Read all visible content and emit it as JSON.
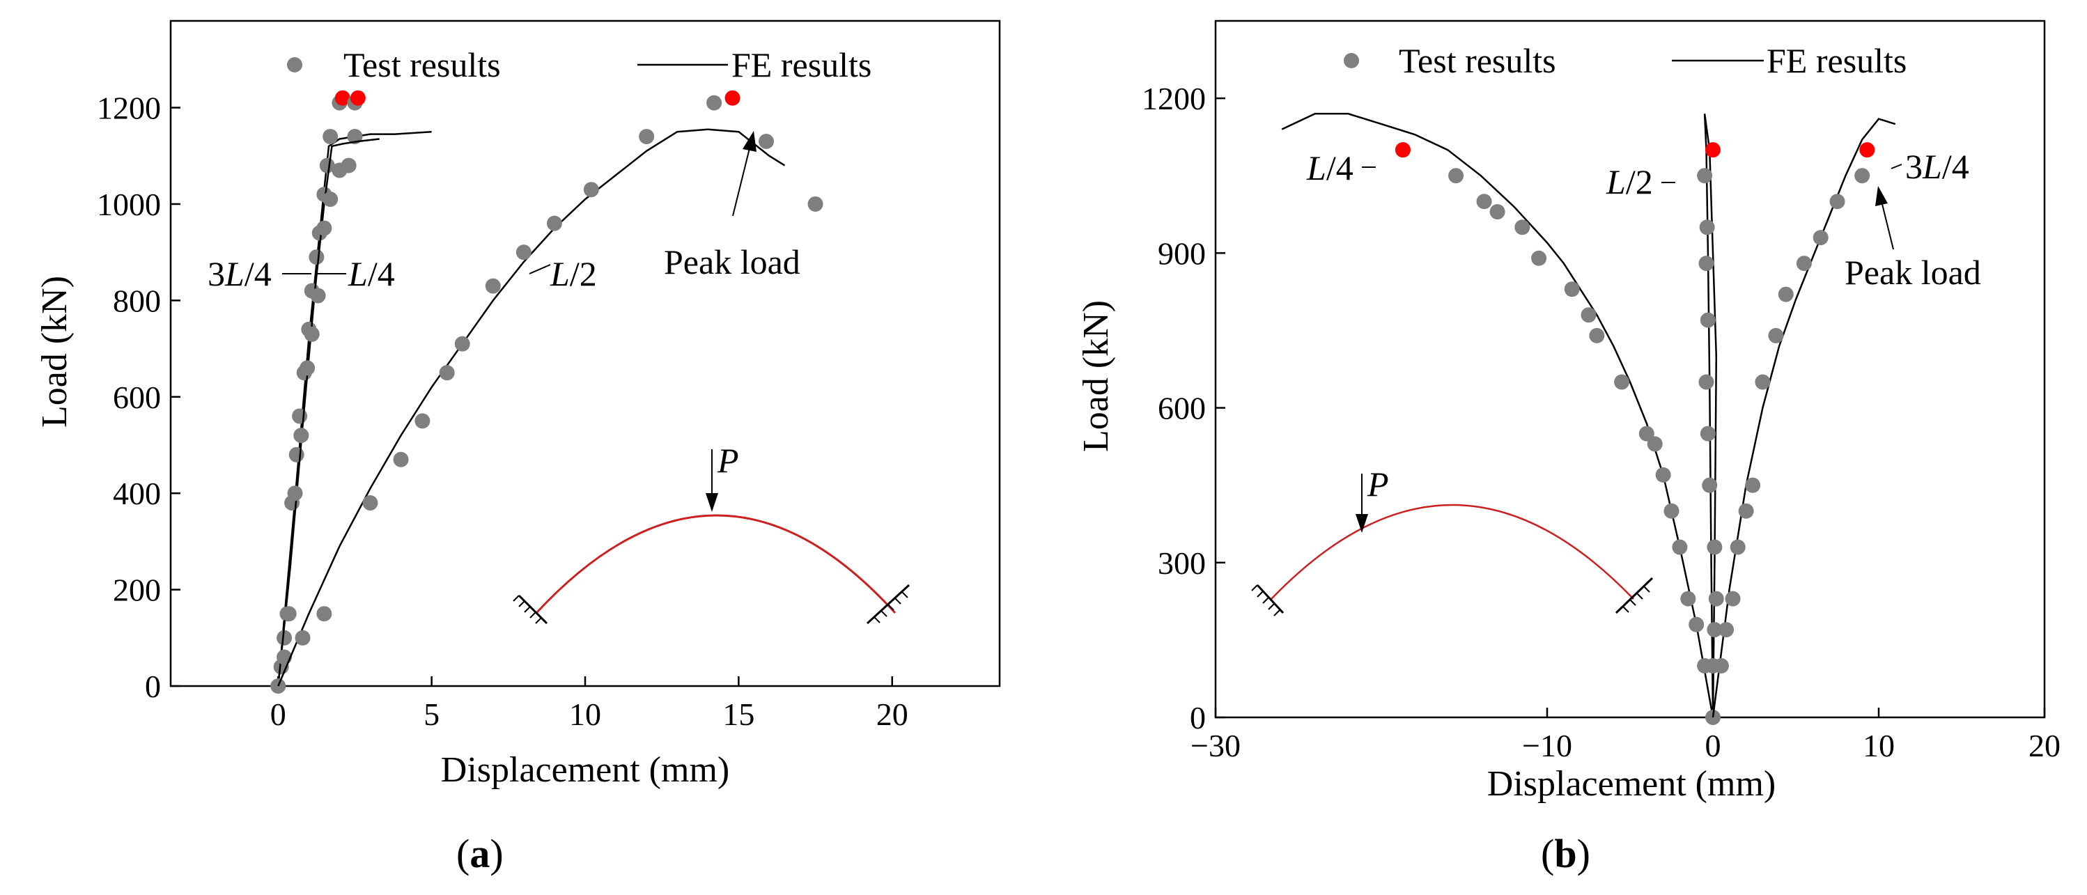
{
  "chart_data": [
    {
      "type": "line",
      "panel_label": "a",
      "xlabel": "Displacement (mm)",
      "ylabel": "Load (kN)",
      "xlim": [
        -3.5,
        23.5
      ],
      "ylim": [
        0,
        1380
      ],
      "xticks": [
        0,
        5,
        10,
        15,
        20
      ],
      "yticks": [
        0,
        200,
        400,
        600,
        800,
        1000,
        1200
      ],
      "legend": {
        "test": "Test results",
        "fe": "FE results",
        "placement": "top"
      },
      "peak_label": "Peak load",
      "load_label": "P",
      "curves": [
        {
          "label": "3L/4",
          "fe": [
            [
              0,
              0
            ],
            [
              0.5,
              350
            ],
            [
              1,
              720
            ],
            [
              1.45,
              1000
            ],
            [
              1.65,
              1120
            ],
            [
              2,
              1135
            ],
            [
              2.5,
              1140
            ],
            [
              3,
              1145
            ],
            [
              3.8,
              1145
            ],
            [
              4.5,
              1148
            ],
            [
              5,
              1150
            ]
          ],
          "test": [
            [
              0.1,
              40
            ],
            [
              0.2,
              100
            ],
            [
              0.3,
              150
            ],
            [
              0.45,
              380
            ],
            [
              0.6,
              480
            ],
            [
              0.7,
              560
            ],
            [
              0.85,
              650
            ],
            [
              1,
              740
            ],
            [
              1.1,
              820
            ],
            [
              1.25,
              890
            ],
            [
              1.35,
              940
            ],
            [
              1.5,
              1020
            ],
            [
              1.6,
              1080
            ],
            [
              1.7,
              1140
            ],
            [
              2,
              1210
            ],
            [
              2.5,
              1140
            ]
          ],
          "peak": [
            2.1,
            1220
          ]
        },
        {
          "label": "L/4",
          "fe": [
            [
              0,
              0
            ],
            [
              0.4,
              250
            ],
            [
              0.8,
              540
            ],
            [
              1.2,
              820
            ],
            [
              1.5,
              1000
            ],
            [
              1.75,
              1120
            ],
            [
              2.1,
              1125
            ],
            [
              2.6,
              1130
            ],
            [
              3.3,
              1135
            ]
          ],
          "test": [
            [
              0,
              0
            ],
            [
              0.2,
              60
            ],
            [
              0.35,
              150
            ],
            [
              0.55,
              400
            ],
            [
              0.75,
              520
            ],
            [
              0.95,
              660
            ],
            [
              1.1,
              730
            ],
            [
              1.3,
              810
            ],
            [
              1.5,
              950
            ],
            [
              1.7,
              1010
            ],
            [
              2,
              1070
            ],
            [
              2.3,
              1080
            ],
            [
              2.5,
              1210
            ]
          ],
          "peak": [
            2.6,
            1220
          ]
        },
        {
          "label": "L/2",
          "fe": [
            [
              0,
              0
            ],
            [
              1,
              150
            ],
            [
              2,
              290
            ],
            [
              3,
              410
            ],
            [
              4,
              520
            ],
            [
              5,
              620
            ],
            [
              6,
              710
            ],
            [
              7,
              800
            ],
            [
              8,
              880
            ],
            [
              9,
              950
            ],
            [
              10,
              1010
            ],
            [
              11,
              1060
            ],
            [
              12,
              1110
            ],
            [
              13,
              1150
            ],
            [
              14,
              1155
            ],
            [
              15,
              1150
            ],
            [
              16,
              1100
            ],
            [
              16.5,
              1080
            ]
          ],
          "test": [
            [
              0.8,
              100
            ],
            [
              1.5,
              150
            ],
            [
              3,
              380
            ],
            [
              4,
              470
            ],
            [
              4.7,
              550
            ],
            [
              5.5,
              650
            ],
            [
              6,
              710
            ],
            [
              7,
              830
            ],
            [
              8,
              900
            ],
            [
              9,
              960
            ],
            [
              10.2,
              1030
            ],
            [
              12,
              1140
            ],
            [
              14.2,
              1210
            ],
            [
              15.9,
              1130
            ],
            [
              17.5,
              1000
            ]
          ],
          "peak": [
            14.8,
            1220
          ]
        }
      ]
    },
    {
      "type": "line",
      "panel_label": "b",
      "xlabel": "Displacement (mm)",
      "ylabel": "Load (kN)",
      "xlim": [
        -30,
        20
      ],
      "ylim": [
        0,
        1350
      ],
      "xticks": [
        -30,
        -10,
        0,
        10,
        20
      ],
      "xtick_labels": [
        "−30",
        "−10",
        "0",
        "10",
        "20"
      ],
      "yticks": [
        0,
        300,
        600,
        900,
        1200
      ],
      "legend": {
        "test": "Test results",
        "fe": "FE results",
        "placement": "top"
      },
      "peak_label": "Peak load",
      "load_label": "P",
      "curves": [
        {
          "label": "L/4",
          "fe": [
            [
              0,
              0
            ],
            [
              -1,
              180
            ],
            [
              -2,
              330
            ],
            [
              -3,
              470
            ],
            [
              -4,
              570
            ],
            [
              -5,
              650
            ],
            [
              -6,
              720
            ],
            [
              -7,
              780
            ],
            [
              -8,
              830
            ],
            [
              -9,
              880
            ],
            [
              -10,
              920
            ],
            [
              -12,
              990
            ],
            [
              -14,
              1050
            ],
            [
              -16,
              1100
            ],
            [
              -18,
              1130
            ],
            [
              -20,
              1150
            ],
            [
              -22,
              1170
            ],
            [
              -24,
              1170
            ],
            [
              -26,
              1140
            ]
          ],
          "test": [
            [
              -0.5,
              100
            ],
            [
              -1,
              180
            ],
            [
              -1.5,
              230
            ],
            [
              -2,
              330
            ],
            [
              -2.5,
              400
            ],
            [
              -3,
              470
            ],
            [
              -3.5,
              530
            ],
            [
              -4,
              550
            ],
            [
              -5.5,
              650
            ],
            [
              -7,
              740
            ],
            [
              -7.5,
              780
            ],
            [
              -8.5,
              830
            ],
            [
              -10.5,
              890
            ],
            [
              -11.5,
              950
            ],
            [
              -13,
              980
            ],
            [
              -13.8,
              1000
            ],
            [
              -15.5,
              1050
            ],
            [
              -18.7,
              1100
            ]
          ],
          "peak": [
            -18.7,
            1100
          ]
        },
        {
          "label": "L/2",
          "fe": [
            [
              0,
              0
            ],
            [
              -0.1,
              300
            ],
            [
              -0.2,
              650
            ],
            [
              -0.3,
              900
            ],
            [
              -0.4,
              1100
            ],
            [
              -0.5,
              1170
            ],
            [
              -0.2,
              1100
            ],
            [
              0.2,
              700
            ],
            [
              0.1,
              300
            ],
            [
              0,
              0
            ]
          ],
          "test": [
            [
              0,
              0
            ],
            [
              0,
              100
            ],
            [
              0.1,
              170
            ],
            [
              0.2,
              230
            ],
            [
              0.1,
              330
            ],
            [
              -0.2,
              450
            ],
            [
              -0.3,
              550
            ],
            [
              -0.4,
              650
            ],
            [
              -0.3,
              770
            ],
            [
              -0.4,
              880
            ],
            [
              -0.35,
              950
            ],
            [
              -0.5,
              1050
            ]
          ],
          "peak": [
            0,
            1100
          ]
        },
        {
          "label": "3L/4",
          "fe": [
            [
              0,
              0
            ],
            [
              1,
              250
            ],
            [
              2,
              450
            ],
            [
              3,
              600
            ],
            [
              4,
              720
            ],
            [
              5,
              810
            ],
            [
              6,
              890
            ],
            [
              7,
              970
            ],
            [
              8,
              1050
            ],
            [
              9,
              1120
            ],
            [
              10,
              1160
            ],
            [
              11,
              1150
            ]
          ],
          "test": [
            [
              0.5,
              100
            ],
            [
              0.8,
              170
            ],
            [
              1.2,
              230
            ],
            [
              1.5,
              330
            ],
            [
              2,
              400
            ],
            [
              2.4,
              450
            ],
            [
              3,
              650
            ],
            [
              3.8,
              740
            ],
            [
              4.4,
              820
            ],
            [
              5.5,
              880
            ],
            [
              6.5,
              930
            ],
            [
              7.5,
              1000
            ],
            [
              9,
              1050
            ]
          ],
          "peak": [
            9.3,
            1100
          ]
        }
      ]
    }
  ],
  "colors": {
    "test_marker": "#7f7f7f",
    "peak_marker": "#ff0000",
    "fe_line": "#000000",
    "arch": "#cc1f1f"
  }
}
